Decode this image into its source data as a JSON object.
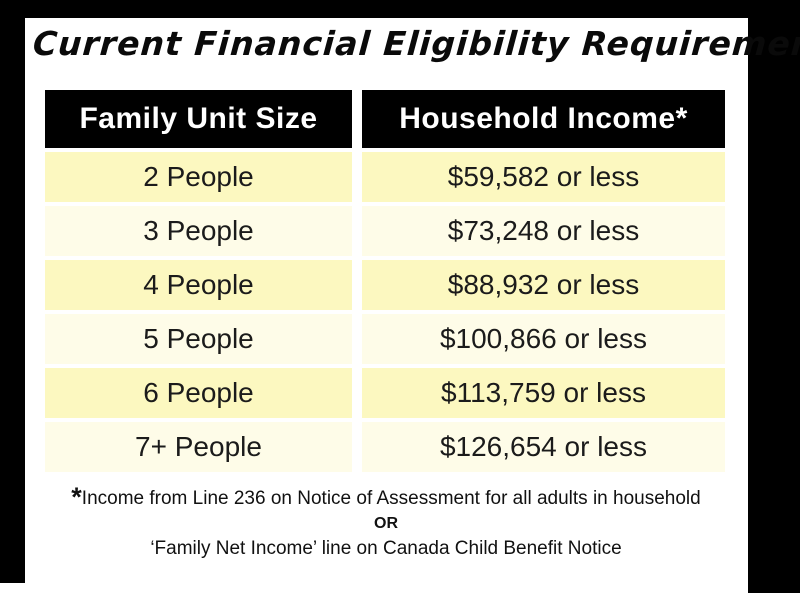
{
  "title": "Current Financial Eligibility Requirements",
  "table": {
    "columns": {
      "family_unit_size": "Family Unit Size",
      "household_income": "Household Income*"
    },
    "rows": [
      {
        "size": "2 People",
        "income": "$59,582 or less"
      },
      {
        "size": "3 People",
        "income": "$73,248 or less"
      },
      {
        "size": "4 People",
        "income": "$88,932 or less"
      },
      {
        "size": "5 People",
        "income": "$100,866 or less"
      },
      {
        "size": "6 People",
        "income": "$113,759 or less"
      },
      {
        "size": "7+ People",
        "income": "$126,654 or less"
      }
    ]
  },
  "footnote": {
    "asterisk": "*",
    "line1": "Income from Line 236 on Notice of Assessment for all adults in household",
    "or": "OR",
    "line2": "‘Family Net Income’ line on Canada Child Benefit Notice"
  },
  "colors": {
    "frame": "#000000",
    "card": "#FFFFFF",
    "header_bg": "#000000",
    "header_text": "#FFFFFF",
    "row_odd": "#FCF8C0",
    "row_even": "#FEFCE8",
    "body_text": "#1B1B1B"
  }
}
